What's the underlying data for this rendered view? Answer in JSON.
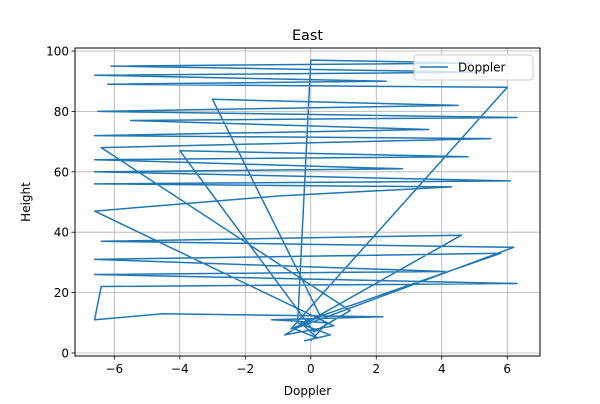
{
  "chart_data": {
    "type": "line",
    "title": "East",
    "xlabel": "Doppler",
    "ylabel": "Height",
    "xlim": [
      -7.2,
      7.0
    ],
    "ylim": [
      -1,
      101
    ],
    "xticks": [
      -6,
      -4,
      -2,
      0,
      2,
      4,
      6
    ],
    "xtick_labels": [
      "−6",
      "−4",
      "−2",
      "0",
      "2",
      "4",
      "6"
    ],
    "yticks": [
      0,
      20,
      40,
      60,
      80,
      100
    ],
    "ytick_labels": [
      "0",
      "20",
      "40",
      "60",
      "80",
      "100"
    ],
    "grid": true,
    "legend_position": "top-right",
    "series": [
      {
        "name": "Doppler",
        "color": "#1f77b4",
        "x": [
          0.0,
          0.5,
          -1.2,
          2.2,
          -4.5,
          -6.6,
          -6.4,
          6.3,
          -6.6,
          4.1,
          -6.6,
          5.8,
          -0.3,
          0.2,
          -0.5,
          6.2,
          -6.4,
          4.6,
          -0.8,
          0.7,
          -6.6,
          -1.0,
          4.3,
          -6.6,
          6.1,
          -6.6,
          2.8,
          -6.6,
          4.8,
          -4.0,
          0.1,
          1.2,
          -6.4,
          5.5,
          -6.6,
          3.6,
          -5.5,
          6.3,
          -6.5,
          4.5,
          -3.0,
          0.3,
          -0.6,
          6.0,
          -6.2,
          2.3,
          -6.6,
          5.2,
          -6.1,
          4.9,
          0.0,
          -0.4,
          0.6,
          -0.2
        ],
        "y": [
          4,
          10,
          11,
          12,
          13,
          11,
          22,
          23,
          26,
          27,
          31,
          33,
          10,
          5,
          8,
          35,
          37,
          39,
          6,
          9,
          47,
          52,
          55,
          56,
          57,
          60,
          61,
          64,
          65,
          67,
          7,
          14,
          68,
          71,
          72,
          74,
          77,
          78,
          80,
          82,
          84,
          12,
          8,
          88,
          89,
          90,
          92,
          93,
          95,
          96,
          97,
          10,
          6,
          4
        ]
      }
    ]
  }
}
